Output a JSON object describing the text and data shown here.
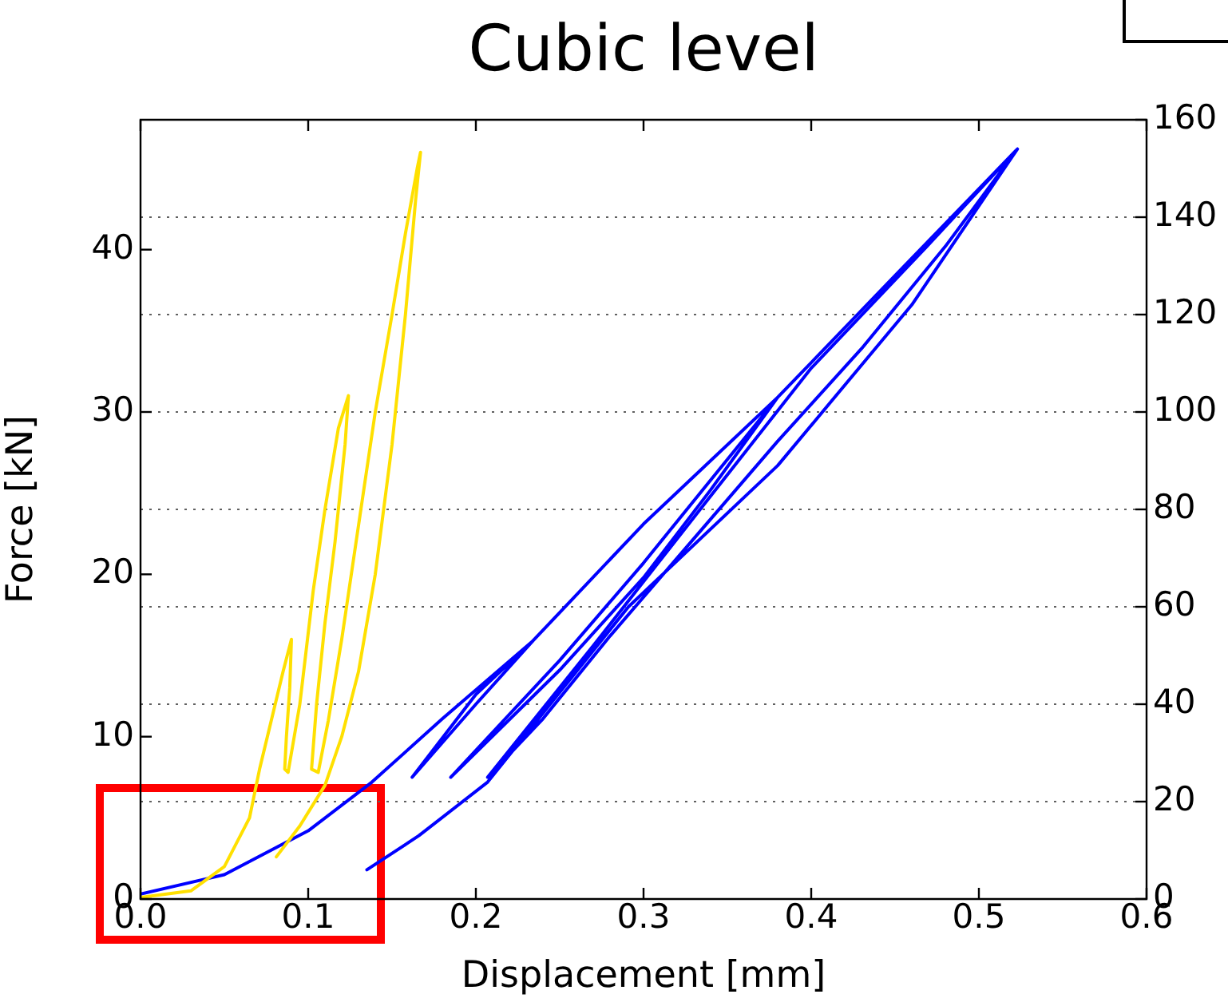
{
  "chart_data": {
    "type": "line",
    "title": "Cubic level",
    "xlabel": "Displacement [mm]",
    "ylabel": "Force [kN]",
    "xlim": [
      0,
      0.6
    ],
    "xticks": [
      {
        "value": 0,
        "label": "0.0"
      },
      {
        "value": 0.1,
        "label": "0.1"
      },
      {
        "value": 0.2,
        "label": "0.2"
      },
      {
        "value": 0.3,
        "label": "0.3"
      },
      {
        "value": 0.4,
        "label": "0.4"
      },
      {
        "value": 0.5,
        "label": "0.5"
      },
      {
        "value": 0.6,
        "label": "0.6"
      }
    ],
    "ylim": [
      0,
      48
    ],
    "yticks": [
      0,
      10,
      20,
      30,
      40
    ],
    "y2lim": [
      0,
      160
    ],
    "y2ticks": [
      0,
      20,
      40,
      60,
      80,
      100,
      120,
      140,
      160
    ],
    "grid": "y",
    "legend": false,
    "marker": "none",
    "line_style": "solid",
    "series": [
      {
        "color": "#ffe000",
        "x": [
          0.0,
          0.03,
          0.05,
          0.065,
          0.071,
          0.078,
          0.085,
          0.09,
          0.089,
          0.087,
          0.086,
          0.088,
          0.095,
          0.103,
          0.11,
          0.118,
          0.124,
          0.122,
          0.116,
          0.11,
          0.105,
          0.102,
          0.106,
          0.112,
          0.12,
          0.13,
          0.14,
          0.15,
          0.158,
          0.165,
          0.167,
          0.164,
          0.158,
          0.15,
          0.14,
          0.13,
          0.12,
          0.11,
          0.095,
          0.081
        ],
        "values": [
          0.1,
          0.5,
          2,
          5,
          8,
          11,
          14,
          16,
          13,
          10,
          8,
          7.8,
          12,
          19,
          24,
          29,
          31,
          28,
          22,
          17,
          12,
          8,
          7.8,
          11,
          16,
          23,
          30,
          36,
          41,
          45,
          46,
          43,
          36,
          28,
          20,
          14,
          10,
          7,
          4.5,
          2.6
        ]
      },
      {
        "color": "#0000ff",
        "axis": "y2",
        "x": [
          0.0,
          0.05,
          0.1,
          0.138,
          0.18,
          0.234,
          0.2,
          0.162,
          0.2,
          0.234,
          0.3,
          0.38,
          0.34,
          0.3,
          0.25,
          0.185,
          0.25,
          0.3,
          0.38,
          0.45,
          0.523,
          0.48,
          0.43,
          0.38,
          0.33,
          0.28,
          0.24,
          0.207,
          0.27,
          0.336,
          0.4,
          0.469,
          0.523,
          0.46,
          0.38,
          0.291,
          0.207,
          0.166,
          0.135
        ],
        "values": [
          1,
          5,
          14,
          24,
          37,
          53,
          42,
          25,
          40,
          53,
          77,
          103,
          84,
          66,
          47,
          25,
          49,
          69,
          103,
          128,
          154,
          134,
          113,
          94,
          74,
          54,
          37,
          25,
          52,
          81,
          109,
          134,
          154,
          122,
          89,
          60,
          24,
          13,
          6
        ]
      }
    ]
  }
}
